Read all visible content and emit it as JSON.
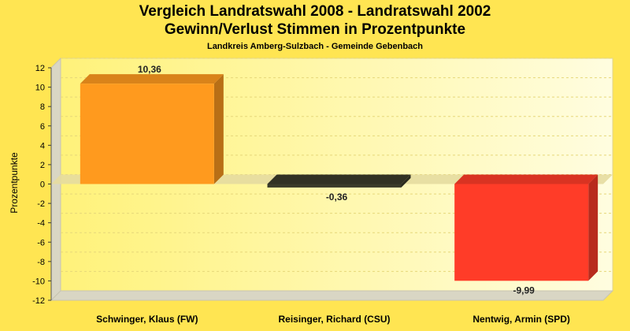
{
  "chart_data": {
    "type": "bar",
    "title": "Vergleich Landratswahl 2008 - Landratswahl 2002",
    "title_line2": "Gewinn/Verlust Stimmen in Prozentpunkte",
    "subtitle": "Landkreis Amberg-Sulzbach - Gemeinde Gebenbach",
    "ylabel": "Prozentpunkte",
    "xlabel": "",
    "ylim": [
      -12,
      12
    ],
    "yticks": [
      12,
      10,
      8,
      6,
      4,
      2,
      0,
      -2,
      -4,
      -6,
      -8,
      -10,
      -12
    ],
    "grid": true,
    "categories": [
      "Schwinger, Klaus (FW)",
      "Reisinger, Richard (CSU)",
      "Nentwig, Armin (SPD)"
    ],
    "values": [
      10.36,
      -0.36,
      -9.99
    ],
    "value_labels": [
      "10,36",
      "-0,36",
      "-9,99"
    ],
    "colors": [
      "#ff9a1e",
      "#3a3a2a",
      "#ff3c28"
    ]
  }
}
